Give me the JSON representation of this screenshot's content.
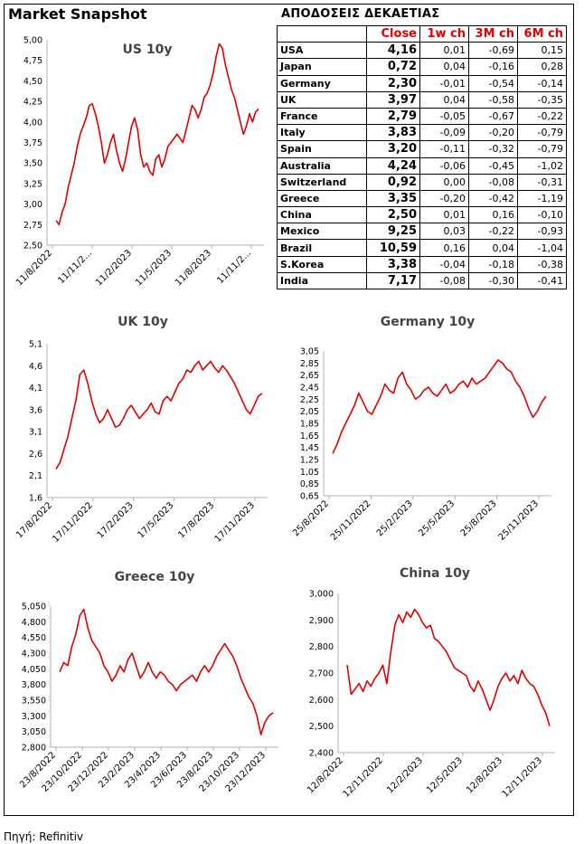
{
  "header": {
    "title": "Market Snapshot"
  },
  "table": {
    "title": "ΑΠΟΔΟΣΕΙΣ ΔΕΚΑΕΤΙΑΣ",
    "columns": [
      "",
      "Close",
      "1w ch",
      "3M ch",
      "6M ch"
    ],
    "rows": [
      [
        "USA",
        "4,16",
        "0,01",
        "-0,69",
        "0,15"
      ],
      [
        "Japan",
        "0,72",
        "0,04",
        "-0,16",
        "0,28"
      ],
      [
        "Germany",
        "2,30",
        "-0,01",
        "-0,54",
        "-0,14"
      ],
      [
        "UK",
        "3,97",
        "0,04",
        "-0,58",
        "-0,35"
      ],
      [
        "France",
        "2,79",
        "-0,05",
        "-0,67",
        "-0,22"
      ],
      [
        "Italy",
        "3,83",
        "-0,09",
        "-0,20",
        "-0,79"
      ],
      [
        "Spain",
        "3,20",
        "-0,11",
        "-0,32",
        "-0,79"
      ],
      [
        "Australia",
        "4,24",
        "-0,06",
        "-0,45",
        "-1,02"
      ],
      [
        "Switzerland",
        "0,92",
        "0,00",
        "-0,08",
        "-0,31"
      ],
      [
        "Greece",
        "3,35",
        "-0,20",
        "-0,42",
        "-1,19"
      ],
      [
        "China",
        "2,50",
        "0,01",
        "0,16",
        "-0,10"
      ],
      [
        "Mexico",
        "9,25",
        "0,03",
        "-0,22",
        "-0,93"
      ],
      [
        "Brazil",
        "10,59",
        "0,16",
        "0,04",
        "-1,04"
      ],
      [
        "S.Korea",
        "3,38",
        "-0,04",
        "-0,18",
        "-0,38"
      ],
      [
        "India",
        "7,17",
        "-0,08",
        "-0,30",
        "-0,41"
      ]
    ],
    "header_color": "#e00000"
  },
  "source": "Πηγή: Refinitiv",
  "chart_data": [
    {
      "id": "us",
      "type": "line",
      "title": "US 10y",
      "color": "#e00000",
      "ylim": [
        2.5,
        5.0
      ],
      "yticks": [
        "2,50",
        "2,75",
        "3,00",
        "3,25",
        "3,50",
        "3,75",
        "4,00",
        "4,25",
        "4,50",
        "4,75",
        "5,00"
      ],
      "xticks": [
        "11/8/2022",
        "11/11/2...",
        "11/2/2023",
        "11/5/2023",
        "11/8/2023",
        "11/11/2..."
      ],
      "series": [
        {
          "values": [
            2.8,
            2.75,
            2.9,
            3.0,
            3.2,
            3.35,
            3.5,
            3.7,
            3.85,
            3.95,
            4.05,
            4.2,
            4.22,
            4.1,
            3.95,
            3.75,
            3.5,
            3.6,
            3.75,
            3.85,
            3.65,
            3.5,
            3.4,
            3.55,
            3.75,
            3.95,
            4.05,
            3.9,
            3.6,
            3.45,
            3.5,
            3.4,
            3.35,
            3.55,
            3.6,
            3.45,
            3.55,
            3.7,
            3.75,
            3.8,
            3.85,
            3.8,
            3.75,
            3.9,
            4.05,
            4.2,
            4.15,
            4.05,
            4.15,
            4.3,
            4.35,
            4.45,
            4.6,
            4.8,
            4.95,
            4.9,
            4.7,
            4.55,
            4.4,
            4.3,
            4.15,
            4.0,
            3.85,
            3.95,
            4.1,
            4.0,
            4.12,
            4.16
          ]
        }
      ]
    },
    {
      "id": "uk",
      "type": "line",
      "title": "UK 10y",
      "color": "#e00000",
      "ylim": [
        1.6,
        5.1
      ],
      "yticks": [
        "1,6",
        "2,1",
        "2,6",
        "3,1",
        "3,6",
        "4,1",
        "4,6",
        "5,1"
      ],
      "xticks": [
        "17/8/2022",
        "17/11/2022",
        "17/2/2023",
        "17/5/2023",
        "17/8/2023",
        "17/11/2023"
      ],
      "series": [
        {
          "values": [
            2.25,
            2.4,
            2.7,
            3.0,
            3.4,
            3.8,
            4.4,
            4.5,
            4.2,
            3.8,
            3.5,
            3.3,
            3.4,
            3.6,
            3.4,
            3.2,
            3.25,
            3.4,
            3.6,
            3.7,
            3.55,
            3.4,
            3.5,
            3.6,
            3.75,
            3.55,
            3.5,
            3.8,
            3.9,
            3.8,
            4.0,
            4.2,
            4.3,
            4.5,
            4.45,
            4.6,
            4.7,
            4.5,
            4.6,
            4.7,
            4.55,
            4.45,
            4.6,
            4.5,
            4.35,
            4.2,
            4.0,
            3.8,
            3.6,
            3.5,
            3.7,
            3.9,
            3.97
          ]
        }
      ]
    },
    {
      "id": "germany",
      "type": "line",
      "title": "Germany 10y",
      "color": "#e00000",
      "ylim": [
        0.65,
        3.05
      ],
      "yticks": [
        "0,65",
        "0,85",
        "1,05",
        "1,25",
        "1,45",
        "1,65",
        "1,85",
        "2,05",
        "2,25",
        "2,45",
        "2,65",
        "2,85",
        "3,05"
      ],
      "xticks": [
        "25/8/2022",
        "25/11/2022",
        "25/2/2023",
        "25/5/2023",
        "25/8/2023",
        "25/11/2023"
      ],
      "series": [
        {
          "values": [
            1.35,
            1.5,
            1.7,
            1.85,
            2.0,
            2.15,
            2.35,
            2.2,
            2.05,
            2.0,
            2.15,
            2.3,
            2.5,
            2.4,
            2.35,
            2.6,
            2.7,
            2.5,
            2.4,
            2.25,
            2.3,
            2.4,
            2.45,
            2.35,
            2.3,
            2.4,
            2.5,
            2.35,
            2.4,
            2.5,
            2.55,
            2.45,
            2.6,
            2.5,
            2.55,
            2.6,
            2.7,
            2.8,
            2.9,
            2.85,
            2.75,
            2.7,
            2.55,
            2.45,
            2.3,
            2.1,
            1.95,
            2.05,
            2.2,
            2.3
          ]
        }
      ]
    },
    {
      "id": "greece",
      "type": "line",
      "title": "Greece 10y",
      "color": "#e00000",
      "ylim": [
        2.8,
        5.05
      ],
      "yticks": [
        "2,800",
        "3,050",
        "3,300",
        "3,550",
        "3,800",
        "4,050",
        "4,300",
        "4,550",
        "4,800",
        "5,050"
      ],
      "xticks": [
        "23/8/2022",
        "23/10/2022",
        "23/12/2022",
        "23/2/2023",
        "23/4/2023",
        "23/6/2023",
        "23/8/2023",
        "23/10/2023",
        "23/12/2023"
      ],
      "series": [
        {
          "values": [
            4.0,
            4.15,
            4.1,
            4.4,
            4.6,
            4.9,
            5.0,
            4.7,
            4.5,
            4.4,
            4.3,
            4.1,
            4.0,
            3.85,
            3.95,
            4.1,
            4.0,
            4.2,
            4.3,
            4.1,
            3.9,
            4.0,
            4.15,
            4.0,
            3.9,
            4.0,
            3.95,
            3.85,
            3.8,
            3.7,
            3.8,
            3.85,
            3.9,
            3.95,
            3.85,
            4.0,
            4.1,
            4.0,
            4.1,
            4.25,
            4.35,
            4.45,
            4.35,
            4.25,
            4.1,
            3.9,
            3.75,
            3.6,
            3.5,
            3.3,
            3.0,
            3.2,
            3.3,
            3.35
          ]
        }
      ]
    },
    {
      "id": "china",
      "type": "line",
      "title": "China 10y",
      "color": "#e00000",
      "ylim": [
        2.4,
        3.0
      ],
      "yticks": [
        "2,400",
        "2,500",
        "2,600",
        "2,700",
        "2,800",
        "2,900",
        "3,000"
      ],
      "xticks": [
        "12/8/2022",
        "12/11/2022",
        "12/2/2023",
        "12/5/2023",
        "12/8/2023",
        "12/11/2023"
      ],
      "series": [
        {
          "values": [
            2.73,
            2.62,
            2.64,
            2.66,
            2.63,
            2.67,
            2.65,
            2.68,
            2.7,
            2.73,
            2.66,
            2.78,
            2.88,
            2.92,
            2.89,
            2.93,
            2.91,
            2.94,
            2.92,
            2.89,
            2.87,
            2.88,
            2.83,
            2.82,
            2.8,
            2.78,
            2.75,
            2.72,
            2.71,
            2.7,
            2.69,
            2.65,
            2.63,
            2.67,
            2.64,
            2.6,
            2.56,
            2.6,
            2.65,
            2.68,
            2.7,
            2.67,
            2.69,
            2.66,
            2.71,
            2.68,
            2.66,
            2.65,
            2.62,
            2.58,
            2.55,
            2.5
          ]
        }
      ]
    }
  ]
}
